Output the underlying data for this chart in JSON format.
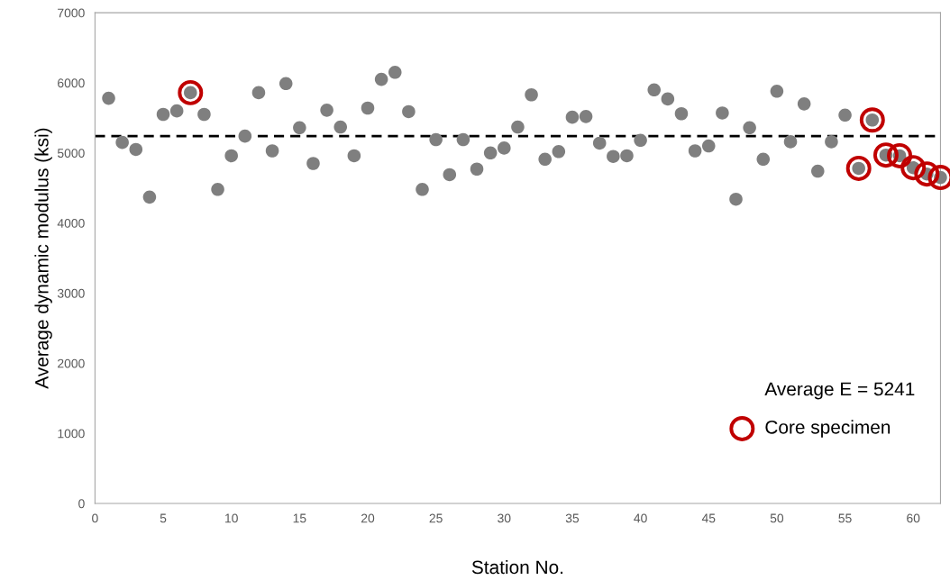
{
  "chart_data": {
    "type": "scatter",
    "xlabel": "Station No.",
    "ylabel": "Average dynamic modulus (ksi)",
    "xlim": [
      0,
      62
    ],
    "xticks": [
      0,
      5,
      10,
      15,
      20,
      25,
      30,
      35,
      40,
      45,
      50,
      55,
      60
    ],
    "ylim": [
      0,
      7000
    ],
    "yticks": [
      0,
      1000,
      2000,
      3000,
      4000,
      5000,
      6000,
      7000
    ],
    "grid": false,
    "legend": "bottom right",
    "marker": "circle",
    "series": [
      {
        "color": "#7f7f7f",
        "x": [
          1,
          2,
          3,
          4,
          5,
          6,
          7,
          8,
          9,
          10,
          11,
          12,
          13,
          14,
          15,
          16,
          17,
          18,
          19,
          20,
          21,
          22,
          23,
          24,
          25,
          26,
          27,
          28,
          29,
          30,
          31,
          32,
          33,
          34,
          35,
          36,
          37,
          38,
          39,
          40,
          41,
          42,
          43,
          44,
          45,
          46,
          47,
          48,
          49,
          50,
          51,
          52,
          53,
          54,
          55,
          56,
          57,
          58,
          59,
          60,
          61,
          62
        ],
        "values": [
          5780,
          5150,
          5050,
          4370,
          5550,
          5600,
          5860,
          5550,
          4480,
          4960,
          5240,
          5860,
          5030,
          5990,
          5360,
          4850,
          5610,
          5370,
          4960,
          5640,
          6050,
          6150,
          5590,
          4480,
          5190,
          4690,
          5190,
          4770,
          5000,
          5070,
          5370,
          5830,
          4910,
          5020,
          5510,
          5520,
          5140,
          4950,
          4960,
          5180,
          5900,
          5770,
          5560,
          5030,
          5100,
          5570,
          4340,
          5360,
          4910,
          5880,
          5160,
          5700,
          4740,
          5160,
          5540,
          4780,
          5470,
          4970,
          4960,
          4790,
          4700,
          4650
        ]
      },
      {
        "name": "Core specimen",
        "color": "#c00000",
        "x": [
          7,
          56,
          57,
          58,
          59,
          60,
          61,
          62
        ],
        "values": [
          5860,
          4780,
          5470,
          4970,
          4960,
          4790,
          4700,
          4650
        ]
      }
    ],
    "ref_lines": [
      {
        "axis": "y",
        "value": 5241,
        "label": "Average E = 5241",
        "color": "#000000",
        "line_style": "dashed"
      }
    ]
  }
}
